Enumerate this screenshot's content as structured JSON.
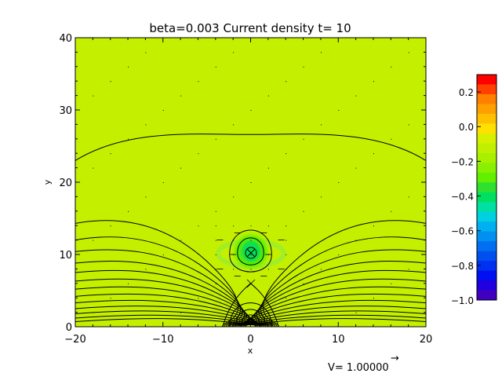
{
  "chart_data": {
    "type": "heatmap",
    "title": "beta=0.003 Current density t= 10",
    "xlabel": "x",
    "ylabel": "y",
    "xlim": [
      -20,
      20
    ],
    "ylim": [
      0,
      40
    ],
    "x_ticks": [
      -20,
      -10,
      0,
      10,
      20
    ],
    "y_ticks": [
      0,
      10,
      20,
      30,
      40
    ],
    "x_tick_labels": [
      "−20",
      "−10",
      "0",
      "10",
      "20"
    ],
    "y_tick_labels": [
      "0",
      "10",
      "20",
      "30",
      "40"
    ],
    "background_value": 0.0,
    "features": [
      {
        "kind": "current-blob",
        "x": 0,
        "y": 10,
        "peak_value": -0.3,
        "radius_y": 2
      },
      {
        "kind": "o-point",
        "x": 0,
        "y": 10
      },
      {
        "kind": "x-point",
        "x": 0,
        "y": 6
      }
    ],
    "colorbar": {
      "min": -1.0,
      "max": 0.3,
      "ticks": [
        0.2,
        0.0,
        -0.2,
        -0.4,
        -0.6,
        -0.8,
        -1.0
      ],
      "tick_labels": [
        "0.2",
        "0.0",
        "−0.2",
        "−0.4",
        "−0.6",
        "−0.8",
        "−1.0"
      ],
      "colors": [
        "#ff0000",
        "#ff4000",
        "#ff8000",
        "#ffa000",
        "#ffc000",
        "#ffe000",
        "#d8f000",
        "#c0f000",
        "#a8f000",
        "#88f000",
        "#60f000",
        "#30e030",
        "#00e060",
        "#00e0a0",
        "#00d0e0",
        "#00b0f0",
        "#0090f0",
        "#0070f0",
        "#0050f0",
        "#0030f0",
        "#0010f0",
        "#2000e0",
        "#4000c0"
      ]
    },
    "field_lines": "magnetic flux contours (black)",
    "velocity_scale_label": "V= 1.00000",
    "velocity_arrow": "→"
  }
}
